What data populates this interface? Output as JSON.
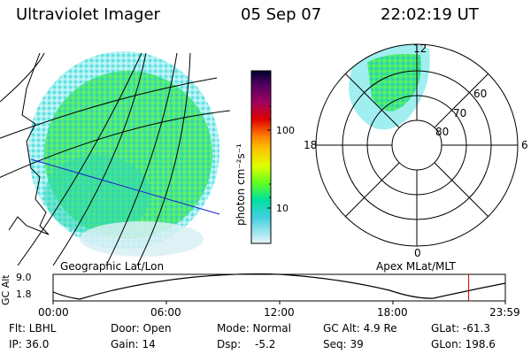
{
  "header": {
    "instrument": "Ultraviolet Imager",
    "date": "05 Sep 07",
    "time": "22:02:19 UT"
  },
  "colorbar": {
    "label": "photon cm⁻²s⁻¹",
    "ticks": [
      "100",
      "10"
    ],
    "colors": [
      "#000040",
      "#400060",
      "#800080",
      "#a00040",
      "#d00000",
      "#ff4000",
      "#ff8c00",
      "#ffc800",
      "#ffff00",
      "#c0ff00",
      "#60ff00",
      "#00ff60",
      "#00e0c0",
      "#00c0ff",
      "#80e0ff",
      "#c0f0ff",
      "#e8f8ff"
    ]
  },
  "left_panel": {
    "caption": "Geographic Lat/Lon"
  },
  "right_panel": {
    "caption": "Apex MLat/MLT",
    "labels": {
      "top": "12",
      "left": "18",
      "right": "6",
      "bottom": "0",
      "r60": "60",
      "r70": "70",
      "r80": "80"
    }
  },
  "timeline": {
    "ylabel": "GC Alt",
    "yticks": [
      "9.0",
      "1.8"
    ],
    "xticks": [
      "00:00",
      "06:00",
      "12:00",
      "18:00",
      "23:59"
    ],
    "marker_time_hours": 22.04,
    "marker_color": "#d00000"
  },
  "info": {
    "row1": {
      "flt": "Flt: LBHL",
      "door": "Door: Open",
      "mode": "Mode: Normal",
      "gcalt": "GC Alt: 4.9 Re",
      "glat": "GLat: -61.3"
    },
    "row2": {
      "ip": "IP: 36.0",
      "gain": "Gain: 14",
      "dsp_label": "Dsp:",
      "dsp_value": "-5.2",
      "seq": "Seq: 39",
      "glon": "GLon: 198.6"
    }
  }
}
